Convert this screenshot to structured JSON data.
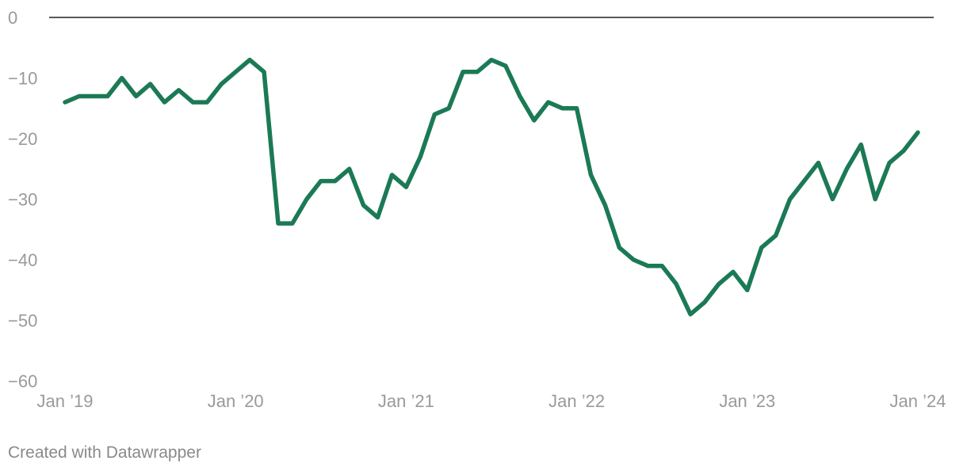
{
  "chart_data": {
    "type": "line",
    "title": "",
    "xlabel": "",
    "ylabel": "",
    "ylim": [
      -60,
      0
    ],
    "grid": false,
    "zero_line": true,
    "y_ticks": [
      0,
      -10,
      -20,
      -30,
      -40,
      -50,
      -60
    ],
    "y_tick_labels": [
      "0",
      "−10",
      "−20",
      "−30",
      "−40",
      "−50",
      "−60"
    ],
    "x_ticks": [
      "2019-01",
      "2020-01",
      "2021-01",
      "2022-01",
      "2023-01",
      "2024-01"
    ],
    "x_tick_labels": [
      "Jan ’19",
      "Jan ’20",
      "Jan ’21",
      "Jan ’22",
      "Jan ’23",
      "Jan ’24"
    ],
    "series": [
      {
        "color": "#1b7a55",
        "points": [
          [
            "2019-01",
            -14
          ],
          [
            "2019-02",
            -13
          ],
          [
            "2019-03",
            -13
          ],
          [
            "2019-04",
            -13
          ],
          [
            "2019-05",
            -10
          ],
          [
            "2019-06",
            -13
          ],
          [
            "2019-07",
            -11
          ],
          [
            "2019-08",
            -14
          ],
          [
            "2019-09",
            -12
          ],
          [
            "2019-10",
            -14
          ],
          [
            "2019-11",
            -14
          ],
          [
            "2019-12",
            -11
          ],
          [
            "2020-01",
            -9
          ],
          [
            "2020-02",
            -7
          ],
          [
            "2020-03",
            -9
          ],
          [
            "2020-04",
            -34
          ],
          [
            "2020-05",
            -34
          ],
          [
            "2020-06",
            -30
          ],
          [
            "2020-07",
            -27
          ],
          [
            "2020-08",
            -27
          ],
          [
            "2020-09",
            -25
          ],
          [
            "2020-10",
            -31
          ],
          [
            "2020-11",
            -33
          ],
          [
            "2020-12",
            -26
          ],
          [
            "2021-01",
            -28
          ],
          [
            "2021-02",
            -23
          ],
          [
            "2021-03",
            -16
          ],
          [
            "2021-04",
            -15
          ],
          [
            "2021-05",
            -9
          ],
          [
            "2021-06",
            -9
          ],
          [
            "2021-07",
            -7
          ],
          [
            "2021-08",
            -8
          ],
          [
            "2021-09",
            -13
          ],
          [
            "2021-10",
            -17
          ],
          [
            "2021-11",
            -14
          ],
          [
            "2021-12",
            -15
          ],
          [
            "2022-01",
            -15
          ],
          [
            "2022-02",
            -26
          ],
          [
            "2022-03",
            -31
          ],
          [
            "2022-04",
            -38
          ],
          [
            "2022-05",
            -40
          ],
          [
            "2022-06",
            -41
          ],
          [
            "2022-07",
            -41
          ],
          [
            "2022-08",
            -44
          ],
          [
            "2022-09",
            -49
          ],
          [
            "2022-10",
            -47
          ],
          [
            "2022-11",
            -44
          ],
          [
            "2022-12",
            -42
          ],
          [
            "2023-01",
            -45
          ],
          [
            "2023-02",
            -38
          ],
          [
            "2023-03",
            -36
          ],
          [
            "2023-04",
            -30
          ],
          [
            "2023-05",
            -27
          ],
          [
            "2023-06",
            -24
          ],
          [
            "2023-07",
            -30
          ],
          [
            "2023-08",
            -25
          ],
          [
            "2023-09",
            -21
          ],
          [
            "2023-10",
            -30
          ],
          [
            "2023-11",
            -24
          ],
          [
            "2023-12",
            -22
          ],
          [
            "2024-01",
            -19
          ]
        ]
      }
    ]
  },
  "footer": {
    "credit": "Created with Datawrapper"
  }
}
